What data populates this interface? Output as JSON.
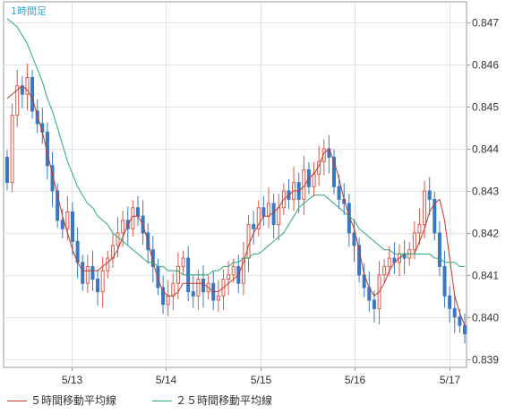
{
  "chart_data": {
    "type": "candlestick",
    "title": "1時間足",
    "x_tick_labels": [
      "5/13",
      "5/14",
      "5/15",
      "5/16",
      "5/17"
    ],
    "y_tick_labels": [
      "0.847",
      "0.846",
      "0.845",
      "0.844",
      "0.843",
      "0.842",
      "0.841",
      "0.840",
      "0.839"
    ],
    "ylim": [
      0.8388,
      0.8475
    ],
    "grid": true,
    "legend_position": "bottom",
    "colors": {
      "up": "#d9584a",
      "down": "#3b78c2",
      "ma5": "#c0392b",
      "ma25": "#27a87a",
      "grid": "#e3e3e3",
      "axis": "#9a9a9a",
      "title": "#3aa5d0",
      "text": "#333333"
    },
    "series": [
      {
        "name": "５時間移動平均線",
        "values": [
          0.8452,
          0.8453,
          0.8454,
          0.8455,
          0.8454,
          0.8452,
          0.8448,
          0.8444,
          0.8439,
          0.8434,
          0.8429,
          0.8424,
          0.842,
          0.8416,
          0.8413,
          0.8411,
          0.8411,
          0.8411,
          0.8411,
          0.8412,
          0.8413,
          0.8414,
          0.8416,
          0.8419,
          0.8422,
          0.8424,
          0.8424,
          0.8422,
          0.8418,
          0.8413,
          0.8409,
          0.8406,
          0.8405,
          0.8405,
          0.8406,
          0.8408,
          0.8408,
          0.8408,
          0.8408,
          0.8408,
          0.8407,
          0.8406,
          0.8406,
          0.8407,
          0.8408,
          0.8409,
          0.841,
          0.8413,
          0.8417,
          0.842,
          0.8422,
          0.8424,
          0.8424,
          0.8425,
          0.8426,
          0.8428,
          0.8429,
          0.843,
          0.843,
          0.8431,
          0.8433,
          0.8434,
          0.8436,
          0.8439,
          0.844,
          0.8437,
          0.8433,
          0.8428,
          0.8424,
          0.8421,
          0.8416,
          0.841,
          0.8407,
          0.8405,
          0.8406,
          0.8408,
          0.8411,
          0.8413,
          0.8414,
          0.8415,
          0.8415,
          0.8415,
          0.8418,
          0.8421,
          0.8425,
          0.8427,
          0.8428,
          0.8423,
          0.8414,
          0.8405,
          0.8401,
          0.8398
        ]
      },
      {
        "name": "２５時間移動平均線",
        "values": [
          0.8471,
          0.847,
          0.8469,
          0.8467,
          0.8465,
          0.8462,
          0.8459,
          0.8456,
          0.8452,
          0.8449,
          0.8445,
          0.8441,
          0.8437,
          0.8434,
          0.8431,
          0.8429,
          0.8427,
          0.8426,
          0.8424,
          0.8423,
          0.8422,
          0.842,
          0.8419,
          0.8418,
          0.8417,
          0.8416,
          0.8415,
          0.8414,
          0.8413,
          0.8413,
          0.8412,
          0.8412,
          0.8411,
          0.8411,
          0.8411,
          0.841,
          0.841,
          0.841,
          0.841,
          0.841,
          0.841,
          0.8411,
          0.8411,
          0.8412,
          0.8412,
          0.8413,
          0.8413,
          0.8414,
          0.8414,
          0.8415,
          0.8415,
          0.8416,
          0.8417,
          0.8418,
          0.8419,
          0.842,
          0.8422,
          0.8424,
          0.8426,
          0.8427,
          0.8428,
          0.8429,
          0.8429,
          0.8429,
          0.8428,
          0.8427,
          0.8426,
          0.8425,
          0.8424,
          0.8423,
          0.8421,
          0.842,
          0.8419,
          0.8418,
          0.8417,
          0.8416,
          0.8416,
          0.8415,
          0.8415,
          0.8415,
          0.8415,
          0.8415,
          0.8415,
          0.8415,
          0.8415,
          0.8414,
          0.8414,
          0.8413,
          0.8413,
          0.8413,
          0.8412,
          0.8412
        ]
      }
    ],
    "closes": [
      0.8432,
      0.8448,
      0.8455,
      0.8453,
      0.8457,
      0.8449,
      0.8446,
      0.8444,
      0.8436,
      0.843,
      0.8423,
      0.8421,
      0.8425,
      0.8418,
      0.8413,
      0.8408,
      0.8412,
      0.8409,
      0.8406,
      0.8411,
      0.8414,
      0.8417,
      0.842,
      0.8423,
      0.8421,
      0.8426,
      0.8424,
      0.842,
      0.8416,
      0.8412,
      0.8407,
      0.8403,
      0.8405,
      0.8408,
      0.8412,
      0.8414,
      0.8406,
      0.8405,
      0.8409,
      0.8406,
      0.8408,
      0.8404,
      0.8405,
      0.8409,
      0.841,
      0.8412,
      0.8408,
      0.8414,
      0.8422,
      0.8421,
      0.8426,
      0.8424,
      0.8427,
      0.8422,
      0.8426,
      0.843,
      0.8428,
      0.8432,
      0.8428,
      0.8435,
      0.8431,
      0.8434,
      0.8437,
      0.844,
      0.8438,
      0.8431,
      0.8428,
      0.8427,
      0.842,
      0.8417,
      0.841,
      0.8407,
      0.8404,
      0.8402,
      0.841,
      0.8412,
      0.8414,
      0.8413,
      0.8415,
      0.8414,
      0.8416,
      0.842,
      0.8422,
      0.843,
      0.8428,
      0.842,
      0.8412,
      0.8405,
      0.8402,
      0.84,
      0.8398,
      0.8396
    ]
  }
}
